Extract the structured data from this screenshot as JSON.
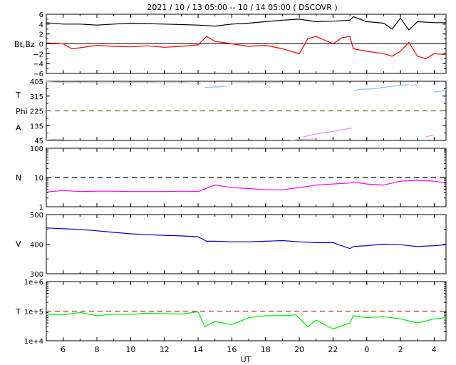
{
  "title": "2021 / 10 / 13   05:00 -- 10 / 14   05:00 ( DSCOVR )",
  "x_axis": {
    "label": "UT",
    "tick_labels": [
      "6",
      "8",
      "10",
      "12",
      "14",
      "16",
      "18",
      "20",
      "22",
      "0",
      "2",
      "4"
    ],
    "tick_hours": [
      6,
      8,
      10,
      12,
      14,
      16,
      18,
      20,
      22,
      24,
      26,
      28
    ],
    "range_hours": [
      5,
      28.7
    ]
  },
  "panels": [
    {
      "id": "bfield",
      "labels": [
        "Bt,Bz"
      ],
      "tick_labels": [
        "6",
        "4",
        "2",
        "0",
        "−2",
        "−4",
        "−6"
      ],
      "tick_values": [
        6,
        4,
        2,
        0,
        -2,
        -4,
        -6
      ],
      "ylim": [
        -6,
        6
      ]
    },
    {
      "id": "angles",
      "labels": [
        "T",
        "Phi",
        "A"
      ],
      "tick_labels": [
        "405",
        "315",
        "225",
        "135",
        "45"
      ],
      "tick_values": [
        405,
        315,
        225,
        135,
        45
      ],
      "ylim": [
        45,
        405
      ]
    },
    {
      "id": "density",
      "labels": [
        "N"
      ],
      "tick_labels": [
        "100",
        "10",
        "1"
      ],
      "tick_values": [
        100,
        10,
        1
      ],
      "ylim": [
        1,
        100
      ],
      "scale": "log"
    },
    {
      "id": "speed",
      "labels": [
        "V"
      ],
      "tick_labels": [
        "500",
        "400",
        "300"
      ],
      "tick_values": [
        500,
        400,
        300
      ],
      "ylim": [
        300,
        500
      ]
    },
    {
      "id": "temperature",
      "labels": [
        "T"
      ],
      "tick_labels": [
        "1e+6",
        "1e+5",
        "1e+4"
      ],
      "tick_values": [
        1000000,
        100000,
        10000
      ],
      "ylim": [
        10000,
        1000000
      ],
      "scale": "log"
    }
  ],
  "chart_data": {
    "type": "line",
    "title": "2021 / 10 / 13   05:00 -- 10 / 14   05:00 ( DSCOVR )",
    "xlabel": "UT",
    "x_unit": "hour of day (UT), wrapping past midnight",
    "series": [
      {
        "panel": "bfield",
        "color": "#000000",
        "x": [
          5,
          6,
          7,
          8,
          9,
          10,
          11,
          12,
          13,
          14,
          15,
          16,
          17,
          18,
          19,
          20,
          21,
          22,
          23,
          23.2,
          24,
          25,
          25.5,
          26,
          26.5,
          27,
          28,
          28.7
        ],
        "y": [
          4.3,
          4.0,
          4.0,
          3.8,
          4.0,
          4.2,
          4.1,
          4.0,
          3.9,
          3.8,
          3.6,
          4.0,
          4.2,
          4.5,
          4.8,
          5.0,
          4.5,
          4.6,
          4.8,
          5.5,
          4.5,
          4.2,
          3.0,
          5.2,
          2.8,
          4.5,
          4.3,
          4.3
        ]
      },
      {
        "panel": "bfield",
        "color": "#ff0000",
        "x": [
          5,
          6,
          6.5,
          7,
          8,
          9,
          10,
          11,
          12,
          13,
          14,
          14.5,
          15,
          16,
          17,
          18,
          19,
          20,
          20.5,
          21,
          22,
          22.5,
          23,
          23.2,
          24,
          25,
          25.5,
          26,
          26.5,
          27,
          27.5,
          28,
          28.7
        ],
        "y": [
          0.2,
          0.0,
          -1.0,
          -0.8,
          -0.3,
          -0.5,
          -0.6,
          -0.4,
          -0.7,
          -0.5,
          -0.2,
          1.5,
          0.5,
          0.0,
          -0.5,
          -0.3,
          -1.0,
          -2.0,
          1.0,
          1.5,
          0.0,
          1.2,
          1.5,
          -1.0,
          -1.5,
          -2.0,
          -2.5,
          -1.5,
          0.3,
          -2.5,
          -3.0,
          -2.0,
          -2.2
        ]
      },
      {
        "panel": "angles",
        "color": "#c0c0c0",
        "x": [
          5,
          6,
          7,
          8,
          9,
          10,
          11,
          12,
          13,
          14,
          14.2
        ],
        "y": [
          403,
          398,
          400,
          396,
          395,
          398,
          400,
          395,
          398,
          393,
          390
        ]
      },
      {
        "panel": "angles",
        "color": "#7fc8f0",
        "x": [
          14.4,
          15,
          15.7
        ],
        "y": [
          368,
          370,
          375
        ]
      },
      {
        "panel": "angles",
        "color": "#c0c0c0",
        "x": [
          15.8,
          17,
          18,
          19
        ],
        "y": [
          395,
          398,
          397,
          400
        ]
      },
      {
        "panel": "angles",
        "color": "#7fc8f0",
        "x": [
          23.2,
          23.5,
          24.5,
          25.5,
          26.5
        ],
        "y": [
          345,
          355,
          360,
          375,
          385
        ]
      },
      {
        "panel": "angles",
        "color": "#c0c0c0",
        "x": [
          26.6,
          27.0
        ],
        "y": [
          380,
          384
        ]
      },
      {
        "panel": "angles",
        "color": "#7fc8f0",
        "x": [
          28,
          28.4,
          28.7
        ],
        "y": [
          340,
          345,
          355
        ]
      },
      {
        "panel": "angles",
        "color": "#c0c0c0",
        "x": [
          5,
          5.5,
          6
        ],
        "y": [
          48,
          52,
          50
        ]
      },
      {
        "panel": "angles",
        "color": "#c0c0c0",
        "x": [
          19.5,
          20,
          21
        ],
        "y": [
          46,
          50,
          55
        ]
      },
      {
        "panel": "angles",
        "color": "#ff7fff",
        "x": [
          20.2,
          21,
          22,
          23.1
        ],
        "y": [
          65,
          85,
          100,
          120
        ]
      },
      {
        "panel": "angles",
        "color": "#ff7fff",
        "x": [
          27.5,
          27.8,
          28
        ],
        "y": [
          65,
          75,
          80
        ]
      },
      {
        "panel": "density",
        "color": "#ff00ff",
        "x": [
          5,
          6,
          7,
          8,
          9,
          10,
          11,
          12,
          13,
          14,
          15,
          16,
          17,
          18,
          19,
          20,
          21,
          22,
          23,
          23.2,
          24,
          25,
          26,
          27,
          28,
          28.7
        ],
        "y": [
          3.2,
          3.6,
          3.3,
          3.4,
          3.4,
          3.3,
          3.3,
          3.3,
          3.4,
          3.3,
          5.5,
          4.5,
          4.2,
          3.8,
          3.8,
          4.5,
          5.5,
          6.0,
          6.5,
          7.0,
          6.0,
          5.5,
          7.5,
          8.0,
          7.5,
          6.5
        ]
      },
      {
        "panel": "speed",
        "color": "#0000cc",
        "x": [
          5,
          6,
          7,
          8,
          9,
          10,
          11,
          12,
          13,
          14,
          14.5,
          15,
          16,
          17,
          18,
          19,
          20,
          21,
          22,
          23,
          23.2,
          24,
          25,
          26,
          27,
          28,
          28.7
        ],
        "y": [
          455,
          452,
          450,
          445,
          440,
          435,
          432,
          430,
          428,
          425,
          410,
          410,
          408,
          408,
          410,
          412,
          408,
          405,
          405,
          385,
          392,
          395,
          400,
          398,
          392,
          395,
          398
        ]
      },
      {
        "panel": "temperature",
        "color": "#00ee00",
        "x": [
          5,
          6,
          7,
          8,
          9,
          10,
          11,
          12,
          13,
          14,
          14.4,
          15,
          16,
          17,
          18,
          19,
          19.8,
          20.5,
          21,
          22,
          23,
          23.2,
          24,
          25,
          26,
          27,
          28,
          28.7
        ],
        "y": [
          80000,
          75000,
          90000,
          70000,
          80000,
          78000,
          85000,
          82000,
          80000,
          95000,
          30000,
          45000,
          35000,
          60000,
          70000,
          70000,
          75000,
          30000,
          50000,
          25000,
          40000,
          70000,
          60000,
          65000,
          55000,
          40000,
          55000,
          60000
        ]
      }
    ],
    "reference_lines": [
      {
        "panel": "bfield",
        "value": 0,
        "style": "solid",
        "color": "#000000"
      },
      {
        "panel": "angles",
        "value": 225,
        "style": "dashed",
        "color": "#8b5a2b"
      },
      {
        "panel": "density",
        "value": 10,
        "style": "dashed",
        "color": "#000000"
      },
      {
        "panel": "temperature",
        "value": 100000,
        "style": "dashed",
        "color": "#cc3333"
      }
    ]
  }
}
